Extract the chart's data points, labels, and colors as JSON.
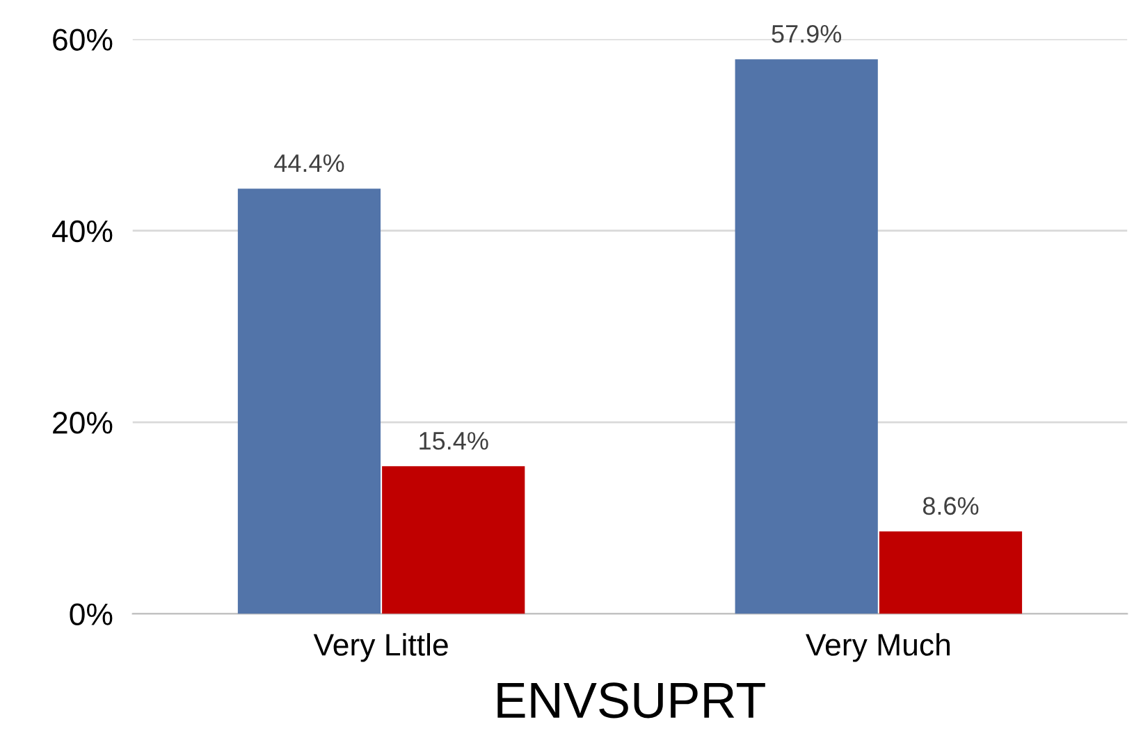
{
  "chart_data": {
    "type": "bar",
    "xlabel": "ENVSUPRT",
    "categories": [
      "Very Little",
      "Very Much"
    ],
    "series": [
      {
        "color": "#5274a9",
        "values": [
          44.4,
          57.9
        ],
        "value_labels": [
          "44.4%",
          "57.9%"
        ]
      },
      {
        "color": "#c00000",
        "values": [
          15.4,
          8.6
        ],
        "value_labels": [
          "15.4%",
          "8.6%"
        ]
      }
    ],
    "ylim": [
      0,
      60
    ],
    "yticks": [
      {
        "value": 0,
        "label": "0%"
      },
      {
        "value": 20,
        "label": "20%"
      },
      {
        "value": 40,
        "label": "40%"
      },
      {
        "value": 60,
        "label": "60%"
      }
    ],
    "grid": "y",
    "legend": false
  }
}
